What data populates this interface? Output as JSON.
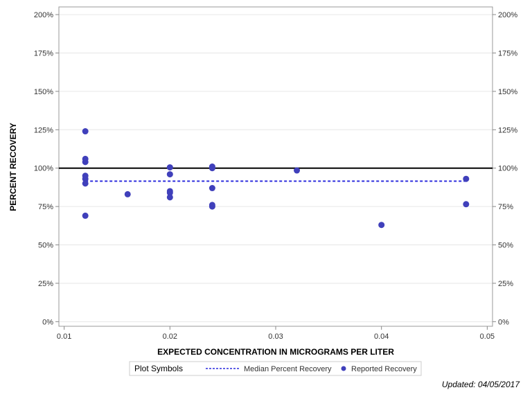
{
  "chart_data": {
    "type": "scatter",
    "xlabel": "EXPECTED CONCENTRATION IN MICROGRAMS PER LITER",
    "ylabel": "PERCENT RECOVERY",
    "xlim": [
      0.0095,
      0.0505
    ],
    "ylim": [
      -3,
      205
    ],
    "x_ticks": [
      0.01,
      0.02,
      0.03,
      0.04,
      0.05
    ],
    "x_tick_labels": [
      "0.01",
      "0.02",
      "0.03",
      "0.04",
      "0.05"
    ],
    "y_ticks": [
      0,
      25,
      50,
      75,
      100,
      125,
      150,
      175,
      200
    ],
    "y_tick_labels": [
      "0%",
      "25%",
      "50%",
      "75%",
      "100%",
      "125%",
      "150%",
      "175%",
      "200%"
    ],
    "grid": "horizontal",
    "reference_line": {
      "y": 100,
      "color": "#000000"
    },
    "median_line": {
      "name": "Median Percent Recovery",
      "y": 91.5,
      "x_range": [
        0.012,
        0.048
      ],
      "color": "#2b2bdd",
      "style": "dashed"
    },
    "series": [
      {
        "name": "Reported Recovery",
        "color": "#4040bb",
        "points": [
          [
            0.012,
            124
          ],
          [
            0.012,
            106
          ],
          [
            0.012,
            104
          ],
          [
            0.012,
            95
          ],
          [
            0.012,
            93
          ],
          [
            0.012,
            90
          ],
          [
            0.012,
            69
          ],
          [
            0.016,
            83
          ],
          [
            0.02,
            100.5
          ],
          [
            0.02,
            96
          ],
          [
            0.02,
            85
          ],
          [
            0.02,
            84
          ],
          [
            0.02,
            81
          ],
          [
            0.024,
            101
          ],
          [
            0.024,
            100
          ],
          [
            0.024,
            87
          ],
          [
            0.024,
            76
          ],
          [
            0.024,
            75
          ],
          [
            0.032,
            98.5
          ],
          [
            0.04,
            63
          ],
          [
            0.048,
            93
          ],
          [
            0.048,
            76.5
          ]
        ]
      }
    ],
    "legend": {
      "title": "Plot Symbols",
      "placement": "bottom",
      "entries": [
        "Median Percent Recovery",
        "Reported Recovery"
      ]
    }
  },
  "footer": {
    "updated": "Updated: 04/05/2017"
  }
}
